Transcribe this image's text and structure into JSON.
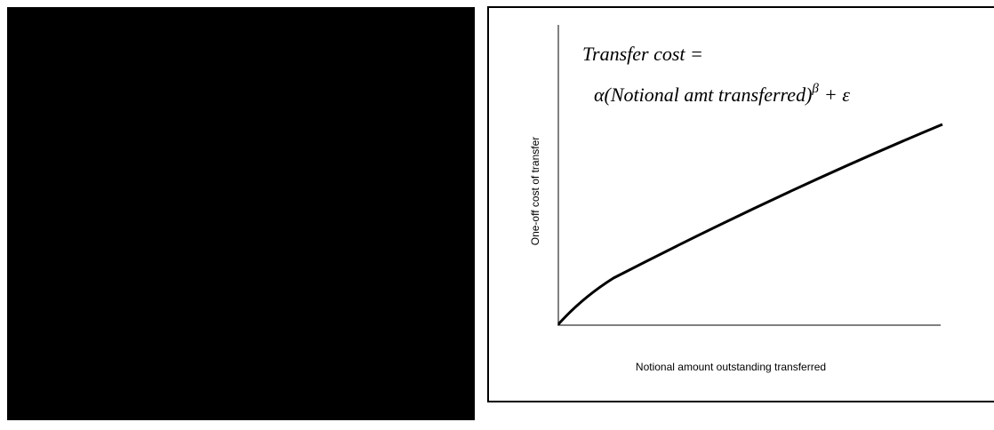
{
  "figure": {
    "formula": {
      "line1": "Transfer cost =",
      "line2_base": "α(Notional amt transferred)",
      "exponent": "β",
      "line2_tail": "+ ε"
    },
    "y_axis_label": "One-off cost of transfer",
    "x_axis_label": "Notional amount outstanding transferred"
  }
}
